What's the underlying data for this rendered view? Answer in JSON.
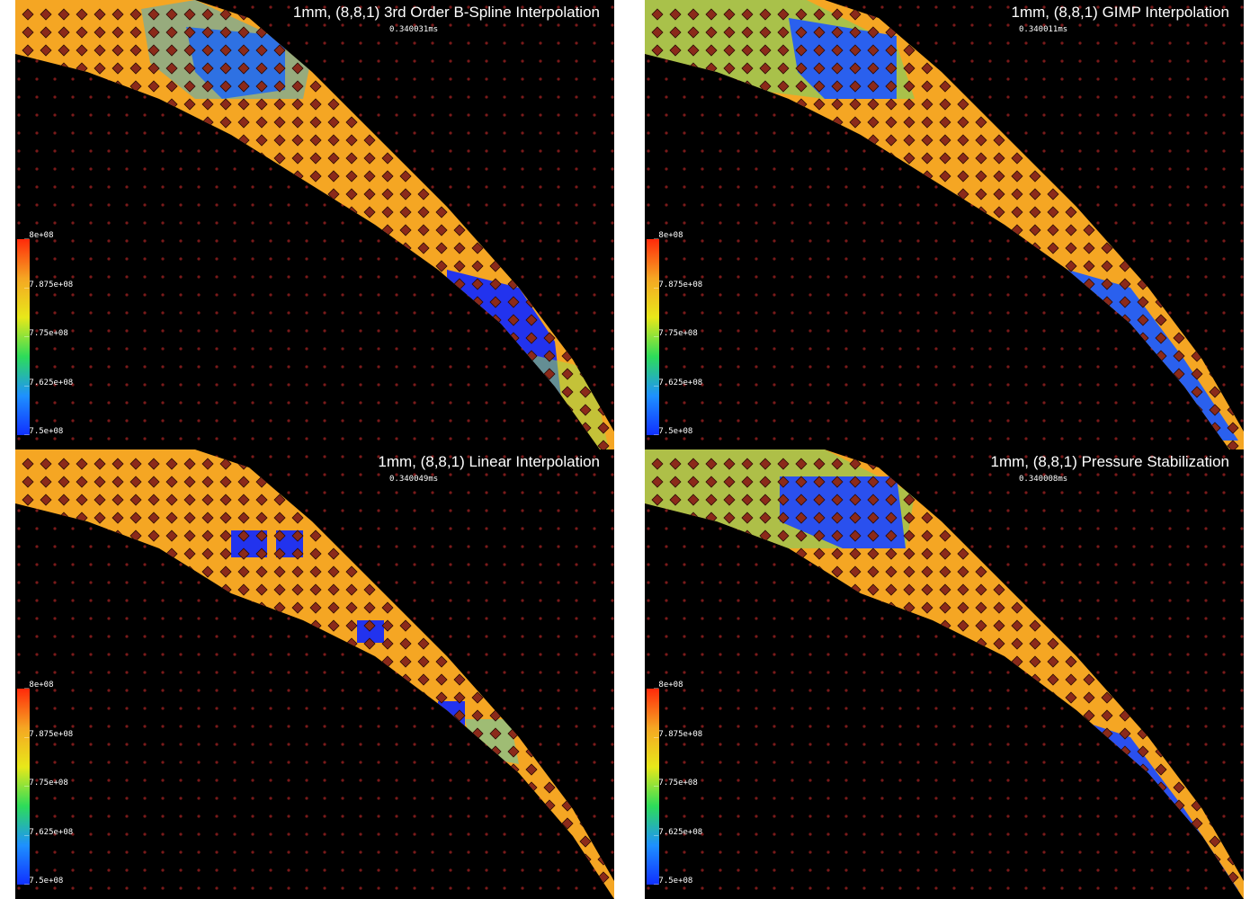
{
  "colorbar": {
    "ticks": [
      "8e+08",
      "7.875e+08",
      "7.75e+08",
      "7.625e+08",
      "7.5e+08"
    ],
    "range": [
      750000000,
      800000000
    ],
    "colors": [
      "#ff2a0a",
      "#f5a623",
      "#e8e81a",
      "#2ddc5a",
      "#1e90ff",
      "#1030ff"
    ]
  },
  "colors": {
    "background": "#000000",
    "material": "#f5a623",
    "particle_fill": "#8b2a1a",
    "particle_stroke": "#2a0a05",
    "low_pressure": "#2233ee",
    "grid_node": "#7a1a1a"
  },
  "panels": [
    {
      "title": "1mm, (8,8,1) 3rd Order B-Spline Interpolation",
      "time": "0.340031ms"
    },
    {
      "title": "1mm, (8,8,1) GIMP Interpolation",
      "time": "0.340011ms"
    },
    {
      "title": "1mm, (8,8,1) Linear Interpolation",
      "time": "0.340049ms"
    },
    {
      "title": "1mm, (8,8,1) Pressure Stabilization",
      "time": "0.340008ms"
    }
  ]
}
